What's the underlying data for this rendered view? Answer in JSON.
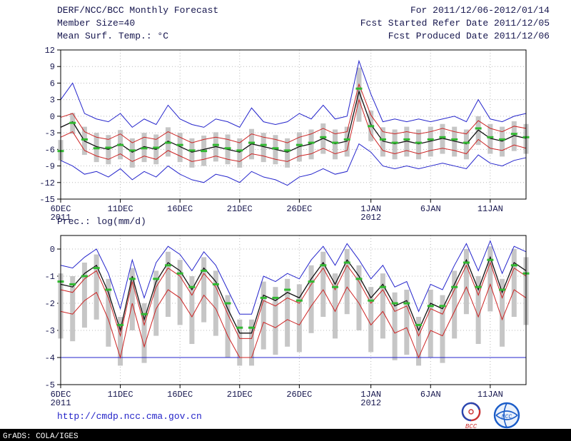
{
  "colors": {
    "axis": "#000000",
    "grid": "#b8b8b8",
    "text": "#16164e",
    "link": "#2424c8",
    "bar": "#c6c6c6",
    "green": "#30b830",
    "blue": "#2424cc",
    "red": "#cc2424",
    "mean_line": "#101010"
  },
  "header": {
    "left": [
      "DERF/NCC/BCC Monthly Forecast",
      "Member Size=40",
      "Mean Surf. Temp.: °C"
    ],
    "right": [
      "For 2011/12/06-2012/01/14",
      "Fcst Started Refer Date 2011/12/05",
      "Fcst Produced Date 2011/12/06"
    ]
  },
  "footer": {
    "url": "http://cmdp.ncc.cma.gov.cn",
    "credit": "GrADS: COLA/IGES"
  },
  "logos": {
    "bcc_label": "BCC",
    "ncc_label": "NCC"
  },
  "chart_data": [
    {
      "type": "line",
      "title": "Mean Surf. Temp.: °C",
      "n": 40,
      "ylim": [
        -15,
        12
      ],
      "yticks": [
        12,
        9,
        6,
        3,
        0,
        -3,
        -6,
        -9,
        -12,
        -15
      ],
      "x_ticks": [
        {
          "i": 0,
          "label": "6DEC",
          "sub": "2011"
        },
        {
          "i": 5,
          "label": "11DEC"
        },
        {
          "i": 10,
          "label": "16DEC"
        },
        {
          "i": 15,
          "label": "21DEC"
        },
        {
          "i": 20,
          "label": "26DEC"
        },
        {
          "i": 26,
          "label": "1JAN",
          "sub": "2012"
        },
        {
          "i": 31,
          "label": "6JAN"
        },
        {
          "i": 36,
          "label": "11JAN"
        }
      ],
      "series": [
        {
          "name": "ensemble-spread-bar",
          "type": "bar",
          "color": "#c6c6c6",
          "top": [
            -4.3,
            0.6,
            -1.9,
            -3.0,
            -3.4,
            -2.5,
            -4.0,
            -3.0,
            -3.3,
            -2.0,
            -3.0,
            -4.0,
            -3.5,
            -2.9,
            -3.3,
            -4.0,
            -2.3,
            -3.0,
            -3.4,
            -4.0,
            -2.9,
            -2.4,
            -1.3,
            -2.4,
            -1.9,
            8.8,
            1.0,
            -2.0,
            -2.4,
            -1.9,
            -2.4,
            -1.9,
            -1.4,
            -1.9,
            -2.4,
            0.0,
            -1.4,
            -1.9,
            -0.9,
            -1.4
          ],
          "bottom": [
            -8.0,
            -3.2,
            -7.0,
            -8.3,
            -8.7,
            -7.8,
            -9.3,
            -8.3,
            -8.7,
            -7.3,
            -8.3,
            -9.3,
            -9.0,
            -8.2,
            -8.7,
            -9.3,
            -7.8,
            -8.3,
            -8.7,
            -9.3,
            -8.2,
            -7.8,
            -6.8,
            -7.8,
            -7.3,
            -1.0,
            -4.5,
            -7.3,
            -7.8,
            -7.3,
            -7.8,
            -7.3,
            -6.8,
            -7.3,
            -7.8,
            -5.2,
            -6.8,
            -7.3,
            -6.3,
            -6.8
          ]
        },
        {
          "name": "ensemble-max",
          "type": "line",
          "color": "#2424cc",
          "values": [
            3.0,
            6.0,
            0.5,
            -0.5,
            -1.0,
            0.5,
            -2.0,
            -0.5,
            -1.5,
            2.0,
            -0.5,
            -1.5,
            -2.0,
            -0.5,
            -1.0,
            -2.0,
            1.5,
            -1.0,
            -1.5,
            -1.0,
            0.5,
            -0.5,
            2.0,
            -0.5,
            0.0,
            10.0,
            4.0,
            -1.0,
            -0.5,
            -1.0,
            -0.5,
            -1.0,
            -0.5,
            0.0,
            -1.0,
            3.0,
            -0.5,
            -1.0,
            0.0,
            0.5
          ]
        },
        {
          "name": "ensemble-min",
          "type": "line",
          "color": "#2424cc",
          "values": [
            -8.0,
            -9.0,
            -10.5,
            -10.0,
            -11.0,
            -9.5,
            -11.5,
            -10.0,
            -11.0,
            -9.0,
            -10.5,
            -11.5,
            -12.0,
            -10.5,
            -11.0,
            -12.0,
            -10.0,
            -11.0,
            -11.5,
            -12.5,
            -11.0,
            -10.5,
            -9.5,
            -10.5,
            -10.0,
            -5.0,
            -6.5,
            -9.0,
            -9.5,
            -9.0,
            -9.5,
            -9.0,
            -8.5,
            -9.0,
            -9.5,
            -7.0,
            -8.5,
            -9.0,
            -8.0,
            -7.5
          ]
        },
        {
          "name": "upper-quartile",
          "type": "line",
          "color": "#cc2424",
          "values": [
            -0.2,
            0.5,
            -2.8,
            -3.8,
            -4.2,
            -3.2,
            -4.8,
            -3.8,
            -4.2,
            -2.8,
            -3.8,
            -4.8,
            -4.2,
            -3.8,
            -4.2,
            -4.8,
            -3.2,
            -3.8,
            -4.2,
            -4.8,
            -3.8,
            -3.2,
            -2.2,
            -3.2,
            -2.8,
            5.8,
            0.2,
            -2.8,
            -3.2,
            -2.8,
            -3.2,
            -2.8,
            -2.2,
            -2.8,
            -3.2,
            -0.8,
            -2.2,
            -2.8,
            -1.8,
            -2.2
          ]
        },
        {
          "name": "lower-quartile",
          "type": "line",
          "color": "#cc2424",
          "values": [
            -3.8,
            -2.8,
            -6.2,
            -7.2,
            -7.8,
            -6.8,
            -8.2,
            -7.2,
            -7.8,
            -6.2,
            -7.2,
            -8.2,
            -7.8,
            -7.2,
            -7.8,
            -8.2,
            -6.8,
            -7.2,
            -7.8,
            -8.2,
            -7.2,
            -6.8,
            -5.8,
            -6.8,
            -6.2,
            3.0,
            -3.2,
            -6.2,
            -6.8,
            -6.2,
            -6.8,
            -6.2,
            -5.8,
            -6.2,
            -6.8,
            -4.2,
            -5.8,
            -6.2,
            -5.2,
            -5.8
          ]
        },
        {
          "name": "ensemble-mean",
          "type": "line",
          "color": "#101010",
          "width": 1.3,
          "values": [
            -2.0,
            -1.0,
            -4.5,
            -5.5,
            -6.0,
            -5.0,
            -6.5,
            -5.5,
            -6.0,
            -4.5,
            -5.5,
            -6.5,
            -6.0,
            -5.5,
            -6.0,
            -6.5,
            -5.0,
            -5.5,
            -6.0,
            -6.5,
            -5.5,
            -5.0,
            -4.0,
            -5.0,
            -4.5,
            4.5,
            -1.5,
            -4.5,
            -5.0,
            -4.5,
            -5.0,
            -4.5,
            -4.0,
            -4.5,
            -5.0,
            -2.5,
            -4.0,
            -4.5,
            -3.5,
            -4.0
          ]
        },
        {
          "name": "ensemble-median-dash",
          "type": "dash",
          "color": "#30b830",
          "values": [
            -6.3,
            -1.2,
            -4.2,
            -5.8,
            -5.7,
            -5.2,
            -6.2,
            -5.8,
            -5.7,
            -4.8,
            -5.2,
            -6.2,
            -6.3,
            -5.2,
            -5.8,
            -6.2,
            -4.8,
            -5.2,
            -5.8,
            -6.2,
            -5.2,
            -4.8,
            -3.8,
            -4.8,
            -4.2,
            5.0,
            -1.8,
            -4.2,
            -4.8,
            -4.2,
            -4.8,
            -4.2,
            -3.8,
            -4.2,
            -4.8,
            -2.2,
            -3.8,
            -4.2,
            -3.2,
            -3.8
          ]
        }
      ]
    },
    {
      "type": "line",
      "title": "Prec.: log(mm/d)",
      "n": 40,
      "ylim": [
        -5,
        0.5
      ],
      "yticks": [
        0,
        -1,
        -2,
        -3,
        -4,
        -5
      ],
      "x_ticks": [
        {
          "i": 0,
          "label": "6DEC",
          "sub": "2011"
        },
        {
          "i": 5,
          "label": "11DEC"
        },
        {
          "i": 10,
          "label": "16DEC"
        },
        {
          "i": 15,
          "label": "21DEC"
        },
        {
          "i": 20,
          "label": "26DEC"
        },
        {
          "i": 26,
          "label": "1JAN",
          "sub": "2012"
        },
        {
          "i": 31,
          "label": "6JAN"
        },
        {
          "i": 36,
          "label": "11JAN"
        }
      ],
      "series": [
        {
          "name": "ensemble-spread-bar",
          "type": "bar",
          "color": "#c6c6c6",
          "top": [
            -0.9,
            -1.0,
            -0.5,
            -0.2,
            -1.1,
            -2.5,
            -0.7,
            -2.0,
            -0.8,
            -0.1,
            -0.4,
            -1.0,
            -0.3,
            -0.8,
            -1.7,
            -2.6,
            -2.6,
            -1.2,
            -1.4,
            -1.1,
            -1.3,
            -0.6,
            -0.1,
            -0.9,
            0.0,
            -0.6,
            -1.4,
            -0.9,
            -1.6,
            -1.5,
            -2.5,
            -1.5,
            -1.7,
            -0.8,
            0.0,
            -1.0,
            0.1,
            -1.1,
            0.0,
            -0.3
          ],
          "bottom": [
            -3.3,
            -3.4,
            -2.9,
            -2.6,
            -3.6,
            -4.3,
            -3.0,
            -4.2,
            -3.2,
            -2.5,
            -2.8,
            -3.5,
            -2.7,
            -3.2,
            -4.0,
            -4.3,
            -4.3,
            -3.7,
            -3.9,
            -3.6,
            -3.8,
            -3.1,
            -2.5,
            -3.3,
            -2.4,
            -3.0,
            -3.8,
            -3.3,
            -4.1,
            -3.9,
            -4.3,
            -4.0,
            -4.2,
            -3.3,
            -2.4,
            -3.5,
            -2.3,
            -3.6,
            -2.5,
            -2.8
          ]
        },
        {
          "name": "lower-bound-line",
          "type": "hline",
          "value": -4,
          "color": "#2424cc"
        },
        {
          "name": "ensemble-max",
          "type": "line",
          "color": "#2424cc",
          "values": [
            -0.6,
            -0.7,
            -0.3,
            0.0,
            -0.9,
            -2.2,
            -0.4,
            -1.8,
            -0.5,
            0.1,
            -0.2,
            -0.8,
            -0.1,
            -0.6,
            -1.5,
            -2.4,
            -2.4,
            -1.0,
            -1.2,
            -0.9,
            -1.1,
            -0.4,
            0.1,
            -0.6,
            0.2,
            -0.4,
            -1.1,
            -0.6,
            -1.4,
            -1.2,
            -2.3,
            -1.3,
            -1.5,
            -0.6,
            0.2,
            -0.8,
            0.3,
            -0.9,
            0.1,
            -0.1
          ]
        },
        {
          "name": "upper-quartile",
          "type": "line",
          "color": "#cc2424",
          "values": [
            -1.5,
            -1.6,
            -1.1,
            -0.8,
            -1.8,
            -3.2,
            -1.2,
            -2.8,
            -1.4,
            -0.7,
            -1.0,
            -1.7,
            -0.9,
            -1.4,
            -2.4,
            -3.3,
            -3.3,
            -1.9,
            -2.1,
            -1.8,
            -2.0,
            -1.3,
            -0.7,
            -1.5,
            -0.6,
            -1.2,
            -2.0,
            -1.5,
            -2.3,
            -2.1,
            -3.2,
            -2.2,
            -2.4,
            -1.5,
            -0.6,
            -1.7,
            -0.5,
            -1.8,
            -0.7,
            -1.0
          ]
        },
        {
          "name": "lower-quartile",
          "type": "line",
          "color": "#cc2424",
          "values": [
            -2.3,
            -2.4,
            -1.9,
            -1.6,
            -2.6,
            -4.0,
            -2.0,
            -3.6,
            -2.2,
            -1.5,
            -1.8,
            -2.5,
            -1.7,
            -2.2,
            -3.2,
            -4.0,
            -4.0,
            -2.7,
            -2.9,
            -2.6,
            -2.8,
            -2.1,
            -1.5,
            -2.3,
            -1.4,
            -2.0,
            -2.8,
            -2.3,
            -3.1,
            -2.9,
            -4.0,
            -3.0,
            -3.2,
            -2.3,
            -1.4,
            -2.5,
            -1.3,
            -2.6,
            -1.5,
            -1.8
          ]
        },
        {
          "name": "ensemble-mean",
          "type": "line",
          "color": "#101010",
          "width": 1.3,
          "values": [
            -1.3,
            -1.4,
            -0.9,
            -0.6,
            -1.6,
            -3.0,
            -1.0,
            -2.6,
            -1.2,
            -0.5,
            -0.8,
            -1.5,
            -0.7,
            -1.2,
            -2.2,
            -3.1,
            -3.1,
            -1.7,
            -1.9,
            -1.6,
            -1.8,
            -1.1,
            -0.5,
            -1.3,
            -0.4,
            -1.0,
            -1.8,
            -1.3,
            -2.1,
            -1.9,
            -3.0,
            -2.0,
            -2.2,
            -1.3,
            -0.4,
            -1.5,
            -0.3,
            -1.6,
            -0.5,
            -0.8
          ]
        },
        {
          "name": "ensemble-median-dash",
          "type": "dash",
          "color": "#30b830",
          "values": [
            -1.2,
            -1.3,
            -1.0,
            -0.7,
            -1.5,
            -2.8,
            -1.1,
            -2.4,
            -1.1,
            -0.6,
            -0.9,
            -1.4,
            -0.8,
            -1.3,
            -2.0,
            -2.9,
            -2.9,
            -1.8,
            -1.8,
            -1.5,
            -1.9,
            -1.2,
            -0.6,
            -1.4,
            -0.5,
            -1.1,
            -1.9,
            -1.4,
            -2.0,
            -2.0,
            -2.8,
            -2.1,
            -2.1,
            -1.4,
            -0.5,
            -1.4,
            -0.4,
            -1.5,
            -0.6,
            -0.9
          ]
        }
      ]
    }
  ]
}
